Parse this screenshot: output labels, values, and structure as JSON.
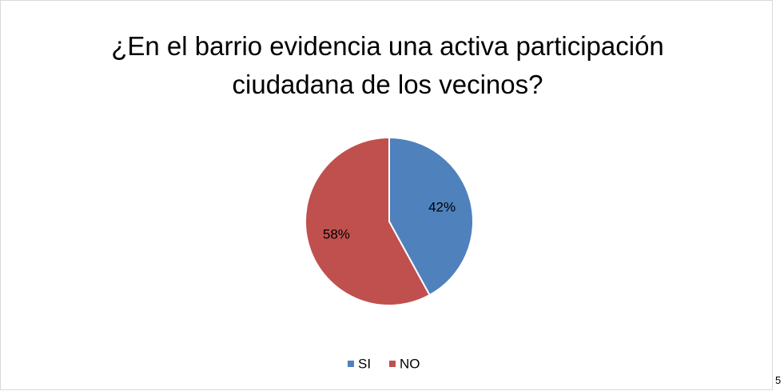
{
  "chart_data": {
    "type": "pie",
    "title": "¿En el barrio evidencia una activa participación ciudadana de los vecinos?",
    "categories": [
      "SI",
      "NO"
    ],
    "values": [
      42,
      58
    ],
    "value_labels": [
      "42%",
      "58%"
    ],
    "colors": [
      "#4f81bd",
      "#c0504d"
    ],
    "legend": "bottom"
  },
  "page_number": "5"
}
